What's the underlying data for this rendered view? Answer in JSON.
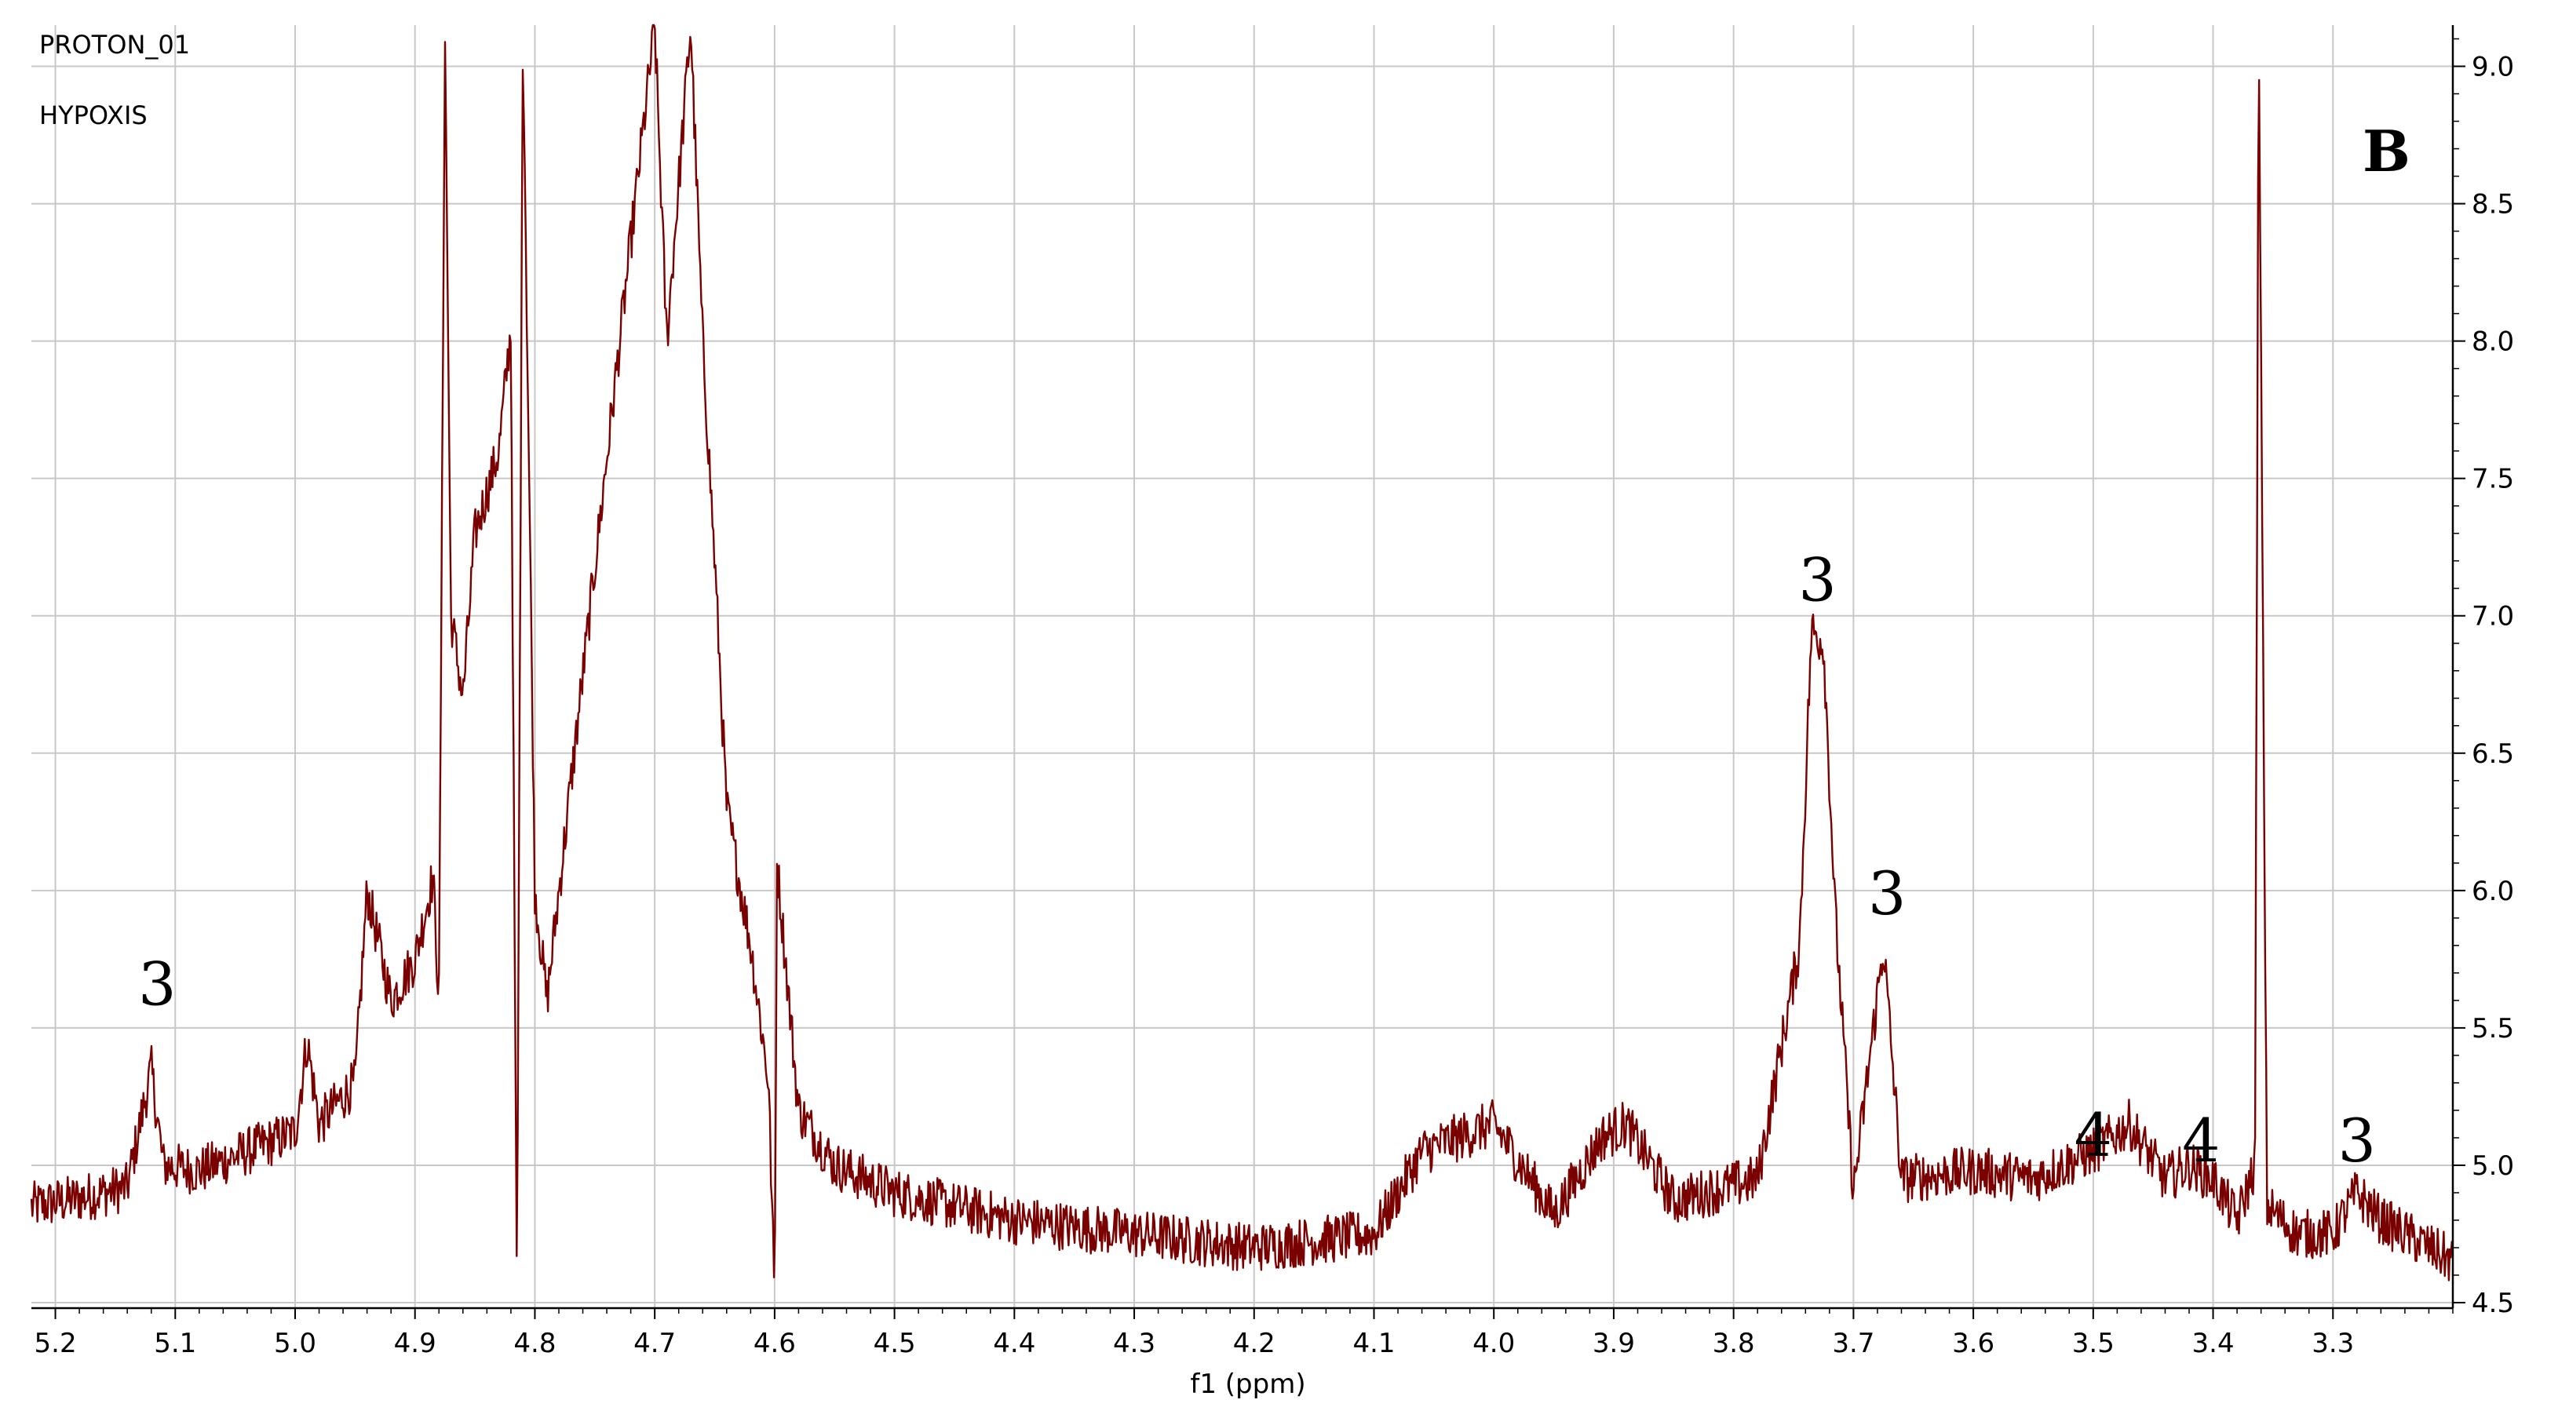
{
  "header": {
    "experiment": "PROTON_01",
    "sample": "HYPOXIS"
  },
  "panel_label": "B",
  "colors": {
    "spectrum": "#7a0000",
    "grid": "#c8c8c8",
    "axis": "#000000"
  },
  "chart_data": {
    "type": "line",
    "xlabel": "f1 (ppm)",
    "ylabel": "",
    "x_reversed": true,
    "xlim": [
      5.22,
      3.2
    ],
    "ylim": [
      4.48,
      9.15
    ],
    "xticks": [
      "5.2",
      "5.1",
      "5.0",
      "4.9",
      "4.8",
      "4.7",
      "4.6",
      "4.5",
      "4.4",
      "4.3",
      "4.2",
      "4.1",
      "4.0",
      "3.9",
      "3.8",
      "3.7",
      "3.6",
      "3.5",
      "3.4",
      "3.3"
    ],
    "yticks": [
      "4.5",
      "5.0",
      "5.5",
      "6.0",
      "6.5",
      "7.0",
      "7.5",
      "8.0",
      "8.5",
      "9.0"
    ],
    "grid": true,
    "series": [
      {
        "values": [
          [
            5.22,
            4.85
          ],
          [
            5.18,
            4.88
          ],
          [
            5.14,
            4.92
          ],
          [
            5.12,
            5.35
          ],
          [
            5.11,
            5.0
          ],
          [
            5.08,
            4.98
          ],
          [
            5.04,
            5.05
          ],
          [
            5.0,
            5.12
          ],
          [
            4.99,
            5.45
          ],
          [
            4.98,
            5.15
          ],
          [
            4.95,
            5.3
          ],
          [
            4.94,
            6.0
          ],
          [
            4.92,
            5.6
          ],
          [
            4.9,
            5.75
          ],
          [
            4.885,
            6.05
          ],
          [
            4.88,
            5.6
          ],
          [
            4.875,
            9.15
          ],
          [
            4.87,
            7.0
          ],
          [
            4.86,
            6.7
          ],
          [
            4.85,
            7.3
          ],
          [
            4.83,
            7.6
          ],
          [
            4.82,
            8.05
          ],
          [
            4.815,
            4.5
          ],
          [
            4.81,
            9.15
          ],
          [
            4.8,
            6.0
          ],
          [
            4.79,
            5.6
          ],
          [
            4.7,
            9.15
          ],
          [
            4.69,
            8.0
          ],
          [
            4.67,
            9.15
          ],
          [
            4.66,
            8.0
          ],
          [
            4.65,
            7.2
          ],
          [
            4.64,
            6.3
          ],
          [
            4.62,
            5.8
          ],
          [
            4.605,
            5.3
          ],
          [
            4.6,
            4.5
          ],
          [
            4.598,
            6.1
          ],
          [
            4.58,
            5.2
          ],
          [
            4.55,
            5.0
          ],
          [
            4.5,
            4.9
          ],
          [
            4.45,
            4.85
          ],
          [
            4.4,
            4.8
          ],
          [
            4.3,
            4.75
          ],
          [
            4.2,
            4.7
          ],
          [
            4.1,
            4.75
          ],
          [
            4.06,
            5.05
          ],
          [
            4.0,
            5.15
          ],
          [
            3.95,
            4.82
          ],
          [
            3.91,
            5.1
          ],
          [
            3.89,
            5.15
          ],
          [
            3.85,
            4.87
          ],
          [
            3.78,
            4.95
          ],
          [
            3.745,
            5.8
          ],
          [
            3.735,
            6.95
          ],
          [
            3.725,
            6.9
          ],
          [
            3.715,
            5.9
          ],
          [
            3.7,
            4.9
          ],
          [
            3.675,
            5.8
          ],
          [
            3.66,
            4.95
          ],
          [
            3.6,
            4.98
          ],
          [
            3.55,
            4.95
          ],
          [
            3.5,
            5.05
          ],
          [
            3.47,
            5.15
          ],
          [
            3.44,
            4.95
          ],
          [
            3.42,
            5.0
          ],
          [
            3.4,
            4.95
          ],
          [
            3.38,
            4.8
          ],
          [
            3.365,
            5.0
          ],
          [
            3.362,
            9.15
          ],
          [
            3.355,
            4.85
          ],
          [
            3.33,
            4.75
          ],
          [
            3.3,
            4.75
          ],
          [
            3.28,
            4.9
          ],
          [
            3.26,
            4.8
          ],
          [
            3.2,
            4.65
          ]
        ]
      }
    ],
    "annotations": [
      {
        "text": "3",
        "x": 5.115,
        "y": 5.55
      },
      {
        "text": "3",
        "x": 3.73,
        "y": 7.02
      },
      {
        "text": "3",
        "x": 3.672,
        "y": 5.88
      },
      {
        "text": "4",
        "x": 3.5,
        "y": 5.0
      },
      {
        "text": "4",
        "x": 3.41,
        "y": 4.98
      },
      {
        "text": "3",
        "x": 3.28,
        "y": 4.98
      }
    ]
  }
}
